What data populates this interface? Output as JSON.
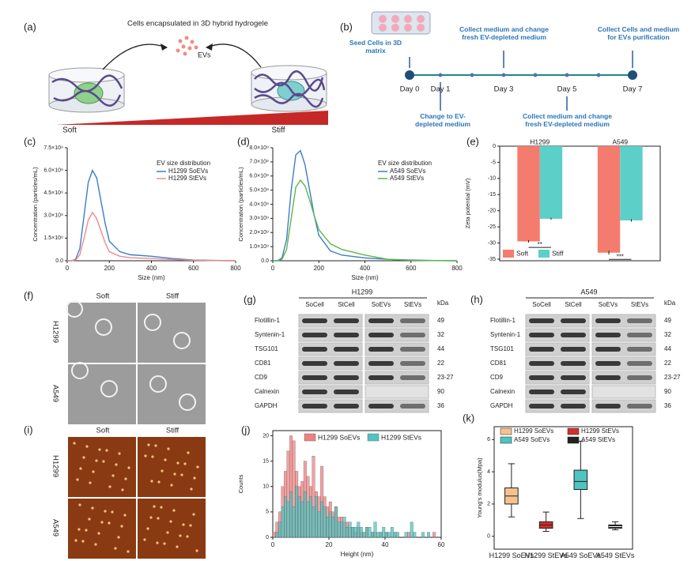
{
  "panel_a": {
    "label": "(a)",
    "title": "Cells encapsulated in 3D hybrid hydrogele",
    "evs": "EVs",
    "soft": "Soft",
    "stiff": "Stiff"
  },
  "panel_b": {
    "label": "(b)",
    "days": [
      "Day 0",
      "Day 1",
      "Day 3",
      "Day 5",
      "Day 7"
    ],
    "notes": [
      "Seed Cells in 3D matrix",
      "Change to EV-depleted medium",
      "Collect medium and change fresh EV-depleted medium",
      "Collect medium and change fresh EV-depleted medium",
      "Collect Cells and medium for EVs purification"
    ]
  },
  "panel_f": {
    "label": "(f)",
    "columns": [
      "Soft",
      "Stiff"
    ],
    "rows": [
      "H1299",
      "A549"
    ]
  },
  "panel_g": {
    "label": "(g)",
    "cell_line": "H1299",
    "lanes": [
      "SoCell",
      "StCell",
      "SoEVs",
      "StEVs"
    ],
    "unit": "kDa",
    "proteins": [
      "Flotillin-1",
      "Syntenin-1",
      "TSG101",
      "CD81",
      "CD9",
      "Calnexin",
      "GAPDH"
    ],
    "weights": [
      "49",
      "32",
      "44",
      "22",
      "23-27",
      "90",
      "36"
    ]
  },
  "panel_h": {
    "label": "(h)",
    "cell_line": "A549",
    "lanes": [
      "SoCell",
      "StCell",
      "SoEVs",
      "StEVs"
    ],
    "unit": "kDa",
    "proteins": [
      "Flotillin-1",
      "Syntenin-1",
      "TSG101",
      "CD81",
      "CD9",
      "Calnexin",
      "GAPDH"
    ],
    "weights": [
      "49",
      "32",
      "44",
      "22",
      "23-27",
      "90",
      "36"
    ]
  },
  "panel_i": {
    "label": "(i)",
    "columns": [
      "Soft",
      "Stiff"
    ],
    "rows": [
      "H1299",
      "A549"
    ]
  },
  "chart_data": [
    {
      "type": "line",
      "panel_label": "(c)",
      "legend_title": "EV size distribution",
      "legend": "upper right",
      "xlabel": "Size (nm)",
      "ylabel": "Concentration (particles/mL)",
      "x": [
        0,
        20,
        40,
        60,
        80,
        100,
        120,
        140,
        160,
        180,
        200,
        250,
        300,
        400,
        500,
        600,
        700,
        800
      ],
      "series": [
        {
          "name": "H1299 SoEVs",
          "color": "#3d7cc9",
          "values": [
            0,
            0,
            100000000.0,
            800000000.0,
            3000000000.0,
            5200000000.0,
            6000000000.0,
            5500000000.0,
            4000000000.0,
            2500000000.0,
            1300000000.0,
            600000000.0,
            400000000.0,
            300000000.0,
            150000000.0,
            50000000.0,
            20000000.0,
            0
          ]
        },
        {
          "name": "H1299 StEVs",
          "color": "#f08a8a",
          "values": [
            0,
            0,
            50000000.0,
            400000000.0,
            1500000000.0,
            2700000000.0,
            3200000000.0,
            2800000000.0,
            2000000000.0,
            1200000000.0,
            600000000.0,
            300000000.0,
            200000000.0,
            150000000.0,
            80000000.0,
            30000000.0,
            10000000.0,
            0
          ]
        }
      ],
      "xlim": [
        0,
        800
      ],
      "xticks": [
        0,
        200,
        400,
        600,
        800
      ],
      "ylim": [
        0,
        7500000000
      ],
      "yticks": [
        {
          "value": 0,
          "label": "0.0"
        },
        {
          "value": 1500000000,
          "label": "1.5×10⁹"
        },
        {
          "value": 3000000000,
          "label": "3.0×10⁹"
        },
        {
          "value": 4500000000,
          "label": "4.5×10⁹"
        },
        {
          "value": 6000000000,
          "label": "6.0×10⁹"
        },
        {
          "value": 7500000000,
          "label": "7.5×10⁹"
        }
      ]
    },
    {
      "type": "line",
      "panel_label": "(d)",
      "legend_title": "EV size distribution",
      "legend": "upper right",
      "xlabel": "Size (nm)",
      "ylabel": "Concentration (particles/mL)",
      "x": [
        0,
        20,
        40,
        60,
        80,
        100,
        120,
        140,
        160,
        180,
        200,
        250,
        300,
        400,
        500,
        600,
        700,
        800
      ],
      "series": [
        {
          "name": "A549 SoEVs",
          "color": "#3d7cc9",
          "values": [
            0,
            0,
            200000000.0,
            1500000000.0,
            5000000000.0,
            7500000000.0,
            7800000000.0,
            6800000000.0,
            5000000000.0,
            3200000000.0,
            1800000000.0,
            700000000.0,
            400000000.0,
            200000000.0,
            100000000.0,
            50000000.0,
            20000000.0,
            0
          ]
        },
        {
          "name": "A549 StEVs",
          "color": "#5cb84a",
          "values": [
            0,
            0,
            100000000.0,
            800000000.0,
            3000000000.0,
            5200000000.0,
            5700000000.0,
            5300000000.0,
            4300000000.0,
            3200000000.0,
            2200000000.0,
            1200000000.0,
            800000000.0,
            400000000.0,
            100000000.0,
            30000000.0,
            10000000.0,
            0
          ]
        }
      ],
      "xlim": [
        0,
        800
      ],
      "xticks": [
        0,
        200,
        400,
        600,
        800
      ],
      "ylim": [
        0,
        8000000000
      ],
      "yticks": [
        {
          "value": 0,
          "label": "0.0"
        },
        {
          "value": 1000000000,
          "label": "1.0×10⁹"
        },
        {
          "value": 2000000000,
          "label": "2.0×10⁹"
        },
        {
          "value": 3000000000,
          "label": "3.0×10⁹"
        },
        {
          "value": 4000000000,
          "label": "4.0×10⁹"
        },
        {
          "value": 5000000000,
          "label": "5.0×10⁹"
        },
        {
          "value": 6000000000,
          "label": "6.0×10⁹"
        },
        {
          "value": 7000000000,
          "label": "7.0×10⁹"
        },
        {
          "value": 8000000000,
          "label": "8.0×10⁹"
        }
      ]
    },
    {
      "type": "bar",
      "panel_label": "(e)",
      "ylabel": "Zeta potential (mV)",
      "legend": "lower left",
      "categories": [
        "H1299",
        "A549"
      ],
      "series": [
        {
          "name": "Soft",
          "color": "#f47c6e",
          "values": [
            -29.5,
            -33
          ],
          "errors": [
            0.4,
            0.6
          ]
        },
        {
          "name": "Stiff",
          "color": "#5dcfc9",
          "values": [
            -22.5,
            -23
          ],
          "errors": [
            0.3,
            0.4
          ]
        }
      ],
      "significance": [
        "**",
        "***"
      ],
      "ylim": [
        -35.5,
        0
      ],
      "yticks": [
        0,
        -5,
        -10,
        -15,
        -20,
        -25,
        -30,
        -35
      ]
    },
    {
      "type": "histogram",
      "panel_label": "(j)",
      "xlabel": "Height (nm)",
      "ylabel": "Counts",
      "legend": "upper center",
      "bins": [
        0,
        1,
        2,
        3,
        4,
        5,
        6,
        7,
        8,
        9,
        10,
        11,
        12,
        13,
        14,
        15,
        16,
        17,
        18,
        19,
        20,
        21,
        22,
        23,
        24,
        25,
        26,
        27,
        28,
        29,
        30,
        31,
        32,
        33,
        34,
        35,
        36,
        37,
        38,
        39,
        40,
        41,
        42,
        43,
        44,
        45,
        46,
        47,
        48,
        49,
        50,
        51,
        52,
        53,
        54,
        55,
        56,
        57,
        58,
        59,
        60
      ],
      "series": [
        {
          "name": "H1299 SoEVs",
          "color": "#f08080",
          "values": [
            1,
            3,
            5,
            10,
            13,
            17,
            20,
            19,
            13,
            10,
            11,
            15,
            12,
            10,
            16,
            9,
            8,
            14,
            8,
            6,
            7,
            5,
            6,
            4,
            4,
            3,
            3,
            2,
            2,
            1,
            2,
            1,
            1,
            2,
            0,
            1,
            1,
            0,
            1,
            0,
            1,
            0,
            0,
            1,
            0,
            0,
            0,
            0,
            1,
            0,
            0,
            0,
            0,
            0,
            0,
            0,
            0,
            1,
            0,
            0
          ]
        },
        {
          "name": "H1299 StEVs",
          "color": "#4fc4c0",
          "values": [
            0,
            1,
            3,
            6,
            8,
            7,
            9,
            6,
            10,
            8,
            7,
            9,
            7,
            8,
            6,
            8,
            5,
            7,
            6,
            4,
            5,
            4,
            6,
            3,
            3,
            4,
            2,
            3,
            2,
            2,
            3,
            2,
            1,
            2,
            2,
            1,
            3,
            1,
            1,
            2,
            1,
            1,
            2,
            1,
            1,
            0,
            0,
            1,
            0,
            3,
            1,
            0,
            0,
            1,
            0,
            1,
            0,
            0,
            0,
            0
          ]
        }
      ],
      "xlim": [
        0,
        60
      ],
      "xticks": [
        0,
        20,
        40,
        60
      ],
      "ylim": [
        0,
        21
      ],
      "yticks": [
        0,
        5,
        10,
        15,
        20
      ]
    },
    {
      "type": "box",
      "panel_label": "(k)",
      "ylabel": "Young's modulus(Mpa)",
      "legend": "upper center",
      "categories": [
        "H1299 SoEVs",
        "H1299 StEVs",
        "A549 SoEVs",
        "A549 StEVs"
      ],
      "colors": [
        "#f5c28f",
        "#d32f2f",
        "#4fc4c0",
        "#222222"
      ],
      "boxes": [
        {
          "min": 1.2,
          "q1": 2.0,
          "median": 2.5,
          "q3": 3.0,
          "max": 4.5
        },
        {
          "min": 0.3,
          "q1": 0.5,
          "median": 0.7,
          "q3": 0.9,
          "max": 1.5
        },
        {
          "min": 1.1,
          "q1": 2.9,
          "median": 3.4,
          "q3": 4.1,
          "max": 5.9
        },
        {
          "min": 0.4,
          "q1": 0.5,
          "median": 0.6,
          "q3": 0.7,
          "max": 0.9
        }
      ],
      "ylim": [
        -0.8,
        6.8
      ],
      "yticks": [
        0,
        2,
        4,
        6
      ]
    }
  ]
}
